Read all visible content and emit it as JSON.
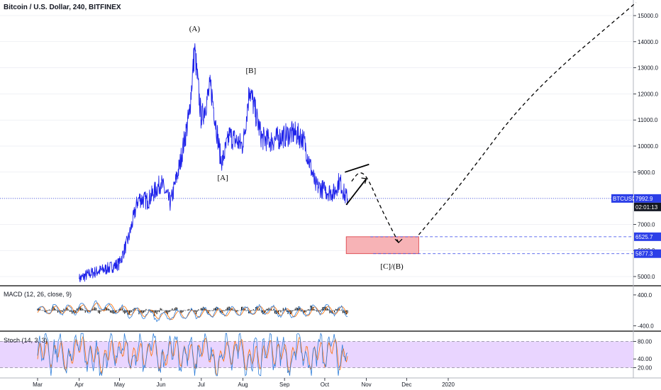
{
  "header": {
    "title": "Bitcoin / U.S. Dollar, 240, BITFINEX"
  },
  "colors": {
    "price_line": "#1e22ea",
    "badge_blue": "#2c3fe8",
    "badge_black": "#131722",
    "target_fill": "#f7b3b6",
    "target_border": "#d9363e",
    "stoch_bg": "#e9d5ff",
    "macd_line": "#2f7ed8",
    "signal_line": "#ff6d00",
    "grid": "#e0e3eb"
  },
  "chart_data": [
    {
      "type": "line",
      "title": "Bitcoin / U.S. Dollar, 240, BITFINEX",
      "x": [
        "2019-04-01",
        "2019-04-08",
        "2019-04-15",
        "2019-04-22",
        "2019-05-01",
        "2019-05-08",
        "2019-05-15",
        "2019-05-22",
        "2019-06-01",
        "2019-06-08",
        "2019-06-15",
        "2019-06-22",
        "2019-06-26",
        "2019-07-01",
        "2019-07-08",
        "2019-07-16",
        "2019-07-22",
        "2019-08-01",
        "2019-08-06",
        "2019-08-15",
        "2019-08-22",
        "2019-09-01",
        "2019-09-08",
        "2019-09-15",
        "2019-09-24",
        "2019-10-01",
        "2019-10-08",
        "2019-10-12",
        "2019-10-16",
        "2019-10-18"
      ],
      "series": [
        {
          "name": "",
          "values": [
            4900,
            5100,
            5200,
            5300,
            5500,
            6500,
            8000,
            7900,
            8600,
            7800,
            9300,
            11200,
            13700,
            11000,
            12300,
            9300,
            10400,
            10000,
            12200,
            10300,
            10200,
            10400,
            10500,
            10300,
            8500,
            8300,
            8200,
            8700,
            8100,
            7992.9
          ]
        }
      ],
      "ylim": [
        4700,
        15500
      ],
      "y_ticks": [
        "15000.0",
        "14000.0",
        "13000.0",
        "12000.0",
        "11000.0",
        "10000.0",
        "9000.0",
        "8000.0",
        "7000.0",
        "6000.0",
        "5000.0"
      ],
      "x_ticks": [
        "Mar",
        "Apr",
        "May",
        "Jun",
        "Jul",
        "Aug",
        "Sep",
        "Oct",
        "Nov",
        "Dec",
        "2020"
      ],
      "wave_labels": [
        {
          "text": "(A)",
          "date": "2019-06-26",
          "price": 14400
        },
        {
          "text": "[A]",
          "date": "2019-07-17",
          "price": 8700
        },
        {
          "text": "[B]",
          "date": "2019-08-07",
          "price": 12800
        },
        {
          "text": "[C]/(B)",
          "date": "2019-11-20",
          "price": 5300
        }
      ],
      "price_badges": [
        {
          "label": "BTCUSD",
          "value": "7992.9"
        },
        {
          "label": "",
          "value": "02:01:13"
        },
        {
          "label": "",
          "value": "6525.7"
        },
        {
          "label": "",
          "value": "5877.3"
        }
      ],
      "current_price": 7992.9,
      "target_zone": {
        "from_date": "2019-10-17",
        "to_date": "2019-12-10",
        "low": 5877.3,
        "high": 6525.7
      },
      "projection_path": [
        {
          "date": "2019-10-21",
          "price": 8650
        },
        {
          "date": "2019-10-27",
          "price": 9050
        },
        {
          "date": "2019-11-02",
          "price": 8800
        },
        {
          "date": "2019-11-12",
          "price": 7600
        },
        {
          "date": "2019-11-25",
          "price": 6300
        },
        {
          "date": "2019-12-10",
          "price": 6600
        },
        {
          "date": "2020-01-10",
          "price": 8500
        },
        {
          "date": "2020-03-01",
          "price": 12000
        },
        {
          "date": "2020-05-20",
          "price": 15500
        }
      ],
      "wedge_lines": [
        {
          "from_date": "2019-10-16",
          "from_price": 9000,
          "to_date": "2019-11-03",
          "to_price": 9300
        },
        {
          "from_date": "2019-10-17",
          "from_price": 7750,
          "to_date": "2019-11-01",
          "to_price": 8750
        }
      ]
    },
    {
      "type": "line",
      "title": "MACD (12, 26, close, 9)",
      "series": [
        {
          "name": "MACD",
          "values": [
            0,
            20,
            40,
            60,
            80,
            120,
            260,
            120,
            40,
            -80,
            -120,
            -200,
            -300,
            -360,
            -180,
            -220,
            -160,
            -120,
            -100,
            -80,
            -40,
            -20,
            20,
            40,
            -60,
            -200,
            -120,
            -40,
            40,
            20,
            0,
            -20
          ]
        },
        {
          "name": "Signal",
          "values": [
            0,
            10,
            30,
            50,
            70,
            100,
            200,
            150,
            80,
            -20,
            -80,
            -150,
            -220,
            -300,
            -240,
            -200,
            -170,
            -140,
            -110,
            -90,
            -60,
            -30,
            0,
            20,
            -20,
            -120,
            -140,
            -80,
            0,
            10,
            5,
            -10
          ]
        }
      ],
      "ylim": [
        -500,
        600
      ],
      "y_ticks": [
        "400.0",
        "-400.0"
      ]
    },
    {
      "type": "line",
      "title": "Stoch (14, 3, 3)",
      "series": [
        {
          "name": "%K",
          "values": [
            45,
            80,
            20,
            90,
            10,
            70,
            95,
            30,
            60,
            5,
            85,
            40,
            90,
            15,
            75,
            25,
            95,
            10,
            60,
            85,
            30,
            70,
            20,
            90,
            45,
            5,
            80,
            35,
            95,
            15,
            65,
            25,
            85,
            40,
            75,
            10,
            90,
            50,
            20,
            80,
            30,
            95,
            15,
            70
          ]
        },
        {
          "name": "%D",
          "values": [
            50,
            65,
            40,
            70,
            30,
            55,
            80,
            45,
            55,
            25,
            65,
            50,
            70,
            35,
            60,
            40,
            75,
            30,
            50,
            70,
            40,
            60,
            35,
            75,
            50,
            20,
            65,
            45,
            80,
            30,
            55,
            35,
            70,
            45,
            65,
            25,
            75,
            55,
            35,
            65,
            40,
            80,
            30,
            60
          ]
        }
      ],
      "ylim": [
        0,
        100
      ],
      "y_ticks": [
        "80.00",
        "40.00",
        "20.00"
      ]
    }
  ]
}
